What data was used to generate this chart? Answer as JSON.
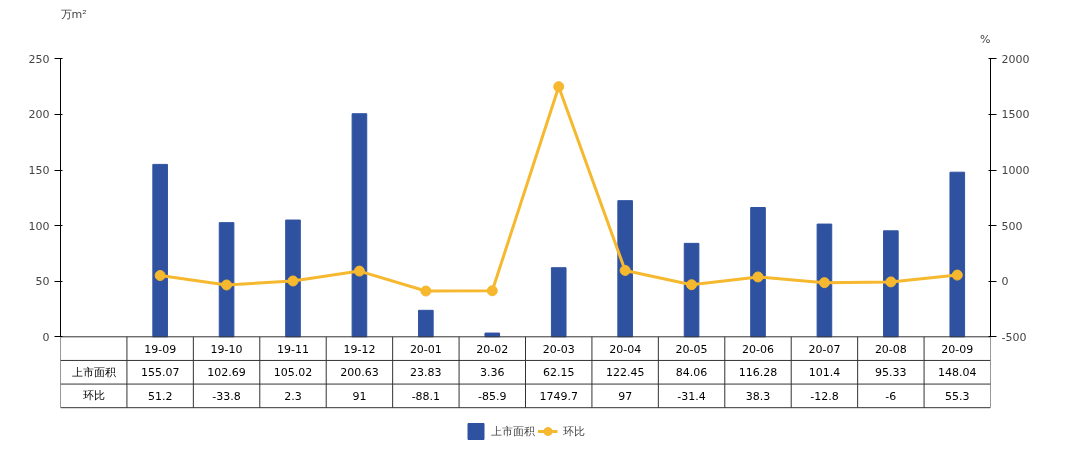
{
  "chart_data": {
    "type": "bar",
    "ylabel": "万m²",
    "y2label": "%",
    "categories": [
      "19-09",
      "19-10",
      "19-11",
      "19-12",
      "20-01",
      "20-02",
      "20-03",
      "20-04",
      "20-05",
      "20-06",
      "20-07",
      "20-08",
      "20-09"
    ],
    "series": [
      {
        "name": "上市面积",
        "color": "#2f52a0",
        "values": [
          155.07,
          102.69,
          105.02,
          200.63,
          23.83,
          3.36,
          62.15,
          122.45,
          84.06,
          116.28,
          101.4,
          95.33,
          148.04
        ]
      },
      {
        "name": "环比",
        "type": "line",
        "axis": "y2",
        "color": "#f5b82e",
        "values": [
          51.2,
          -33.8,
          2.3,
          91,
          -88.1,
          -85.9,
          1749.7,
          97,
          -31.4,
          38.3,
          -12.8,
          -6,
          55.3
        ]
      }
    ],
    "ylim": [
      0,
      250
    ],
    "yticks": [
      0,
      50,
      100,
      150,
      200,
      250
    ],
    "y2lim": [
      -500,
      2000
    ],
    "y2ticks": [
      -500,
      0,
      500,
      1000,
      1500,
      2000
    ],
    "marker": "circle",
    "line_style": "solid",
    "data_labels": true,
    "legend": "bottom",
    "grid": false
  }
}
